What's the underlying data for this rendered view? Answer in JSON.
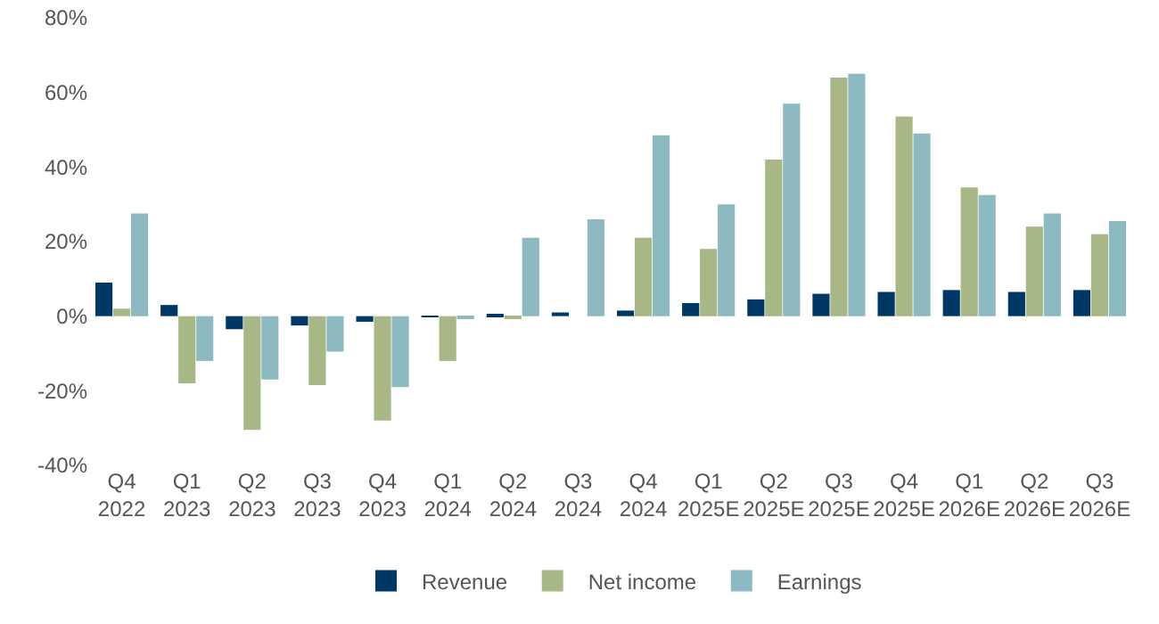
{
  "chart_data": {
    "type": "bar",
    "categories": [
      "Q4\n2022",
      "Q1\n2023",
      "Q2\n2023",
      "Q3\n2023",
      "Q4\n2023",
      "Q1\n2024",
      "Q2\n2024",
      "Q3\n2024",
      "Q4\n2024",
      "Q1\n2025E",
      "Q2\n2025E",
      "Q3\n2025E",
      "Q4\n2025E",
      "Q1\n2026E",
      "Q2\n2026E",
      "Q3\n2026E"
    ],
    "series": [
      {
        "name": "Revenue",
        "color": "#003865",
        "values": [
          9,
          3,
          -3.5,
          -2.5,
          -1.5,
          -0.3,
          0.5,
          1,
          1.5,
          3.5,
          4.5,
          6,
          6.5,
          7,
          6.5,
          7
        ]
      },
      {
        "name": "Net income",
        "color": "#a8b786",
        "values": [
          2,
          -18,
          -30.5,
          -18.5,
          -28,
          -12,
          -0.5,
          0,
          21,
          18,
          42,
          64,
          53.5,
          34.5,
          24,
          22
        ]
      },
      {
        "name": "Earnings",
        "color": "#8db9c0",
        "values": [
          27.5,
          -12,
          -17,
          -9.5,
          -19,
          -0.5,
          21,
          26,
          48.5,
          30,
          57,
          65,
          49,
          32.5,
          27.5,
          25.5
        ]
      }
    ],
    "ylim": [
      -40,
      80
    ],
    "yticks": [
      {
        "value": -40,
        "label": "-40%"
      },
      {
        "value": -20,
        "label": "-20%"
      },
      {
        "value": 0,
        "label": "0%"
      },
      {
        "value": 20,
        "label": "20%"
      },
      {
        "value": 40,
        "label": "40%"
      },
      {
        "value": 60,
        "label": "60%"
      },
      {
        "value": 80,
        "label": "80%"
      }
    ],
    "grid": false,
    "legend": "bottom"
  }
}
